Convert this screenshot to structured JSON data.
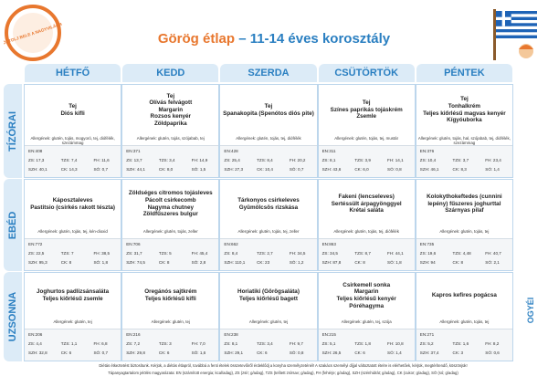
{
  "header": {
    "badge": "KÓSTOLJ BELE A NAGYVILÁGBA!",
    "title_main": "Görög étlap",
    "title_rest": "– 11-14 éves korosztály"
  },
  "days": [
    "HÉTFŐ",
    "KEDD",
    "SZERDA",
    "CSÜTÖRTÖK",
    "PÉNTEK"
  ],
  "meals": [
    {
      "name": "TÍZÓRAI",
      "cells": [
        {
          "dishes": [
            "Tej",
            "Diós kifli"
          ],
          "allergens": "Allergének: glutén, tojás, mogyoró, tej, diófélék, szezámmag",
          "nutrition": [
            "EN:408",
            "ZS: 17,3",
            "TZS: 7,4",
            "FH: 11,6",
            "SZH: 40,1",
            "CK: 14,3",
            "SÓ: 0,7"
          ]
        },
        {
          "dishes": [
            "Tej",
            "Olívás felvágott",
            "Margarin",
            "Rozsos kenyér",
            "Zöldpaprika"
          ],
          "allergens": "Allergének: glutén, tojás, szójabab, tej",
          "nutrition": [
            "EN:371",
            "ZS: 13,7",
            "TZS: 3,4",
            "FH: 14,9",
            "SZH: 44,1",
            "CK: 8,0",
            "SÓ: 1,5"
          ]
        },
        {
          "dishes": [
            "Tej",
            "Spanakopita (Spenótos diós pite)"
          ],
          "allergens": "Allergének: glutén, tojás, tej, diófélék",
          "nutrition": [
            "EN:428",
            "ZS: 25,4",
            "TZS: 8,4",
            "FH: 20,2",
            "SZH: 27,3",
            "CK: 10,4",
            "SÓ: 0,7"
          ]
        },
        {
          "dishes": [
            "Tej",
            "Színes paprikás tojáskrém",
            "Zsemle"
          ],
          "allergens": "Allergének: glutén, tojás, tej, mustár",
          "nutrition": [
            "EN:311",
            "ZS: 8,1",
            "TZS: 3,9",
            "FH: 14,1",
            "SZH: 43,6",
            "CK: 6,0",
            "SÓ: 0,8"
          ]
        },
        {
          "dishes": [
            "Tej",
            "Tonhalkrém",
            "Teljes kiőrlésű magvas kenyér",
            "Kígyóuborka"
          ],
          "allergens": "Allergének: glutén, tojás, hal, szójabab, tej, diófélék, szezámmag",
          "nutrition": [
            "EN:376",
            "ZS: 10,4",
            "TZS: 3,7",
            "FH: 23,4",
            "SZH: 46,1",
            "CK: 8,3",
            "SÓ: 1,4"
          ]
        }
      ]
    },
    {
      "name": "EBÉD",
      "cells": [
        {
          "dishes": [
            "Káposztaleves",
            "Pastitsio (csirkés rakott tészta)"
          ],
          "allergens": "Allergének: glutén, tojás, tej, kén-dioxid",
          "nutrition": [
            "EN:772",
            "ZS: 22,5",
            "TZS: 7",
            "FH: 38,5",
            "SZH: 95,3",
            "CK: 8",
            "SÓ: 1,8"
          ]
        },
        {
          "dishes": [
            "Zöldséges citromos tojásleves",
            "Pácolt csirkecomb",
            "Nagyma chutney",
            "Zöldfűszeres bulgur"
          ],
          "allergens": "Allergének: glutén, tojás, zeller",
          "nutrition": [
            "EN:706",
            "ZS: 31,7",
            "TZS: 5",
            "FH: 45,4",
            "SZH: 74,5",
            "CK: 8",
            "SÓ: 2,8"
          ]
        },
        {
          "dishes": [
            "Tárkonyos csirkeleves",
            "Gyümölcsös rizskása"
          ],
          "allergens": "Allergének: glutén, tojás, tej, zeller",
          "nutrition": [
            "EN:662",
            "ZS: 8,4",
            "TZS: 2,7",
            "FH: 34,5",
            "SZH: 110,1",
            "CK: 23",
            "SÓ: 1,2"
          ]
        },
        {
          "dishes": [
            "Fakeni (lencseleves)",
            "Sertéssült árpagyönggyel",
            "Krétai saláta"
          ],
          "allergens": "Allergének: glutén, tojás, tej, diófélék",
          "nutrition": [
            "EN:863",
            "ZS: 34,5",
            "TZS: 8,7",
            "FH: 44,1",
            "SZH: 87,8",
            "CK: 8",
            "SÓ: 1,8"
          ]
        },
        {
          "dishes": [
            "Kolokythokeftedes (cunnini",
            "lepény) fűszeres joghurttal",
            "Szárnyas pilaf"
          ],
          "allergens": "Allergének: glutén, tojás, tej",
          "nutrition": [
            "EN:735",
            "ZS: 19,6",
            "TZS: 4,48",
            "FH: 40,7",
            "SZH: 94",
            "CK: 8",
            "SÓ: 2,1"
          ]
        }
      ]
    },
    {
      "name": "UZSONNA",
      "cells": [
        {
          "dishes": [
            "Joghurtos padlizsánsaláta",
            "Teljes kiőrlésű zsemle"
          ],
          "allergens": "Allergének: glutén, tej",
          "nutrition": [
            "EN:206",
            "ZS: 4,4",
            "TZS: 1,1",
            "FH: 6,8",
            "SZH: 32,8",
            "CK: 6",
            "SÓ: 0,7"
          ]
        },
        {
          "dishes": [
            "Oregánós sajtkrém",
            "Teljes kiőrlésű kifli"
          ],
          "allergens": "Allergének: glutén, tej",
          "nutrition": [
            "EN:216",
            "ZS: 7,2",
            "TZS: 3",
            "FH: 7,0",
            "SZH: 29,8",
            "CK: 6",
            "SÓ: 1,6"
          ]
        },
        {
          "dishes": [
            "Horiatiki (Görögsaláta)",
            "Teljes kiőrlésű bagett"
          ],
          "allergens": "Allergének: glutén, tej",
          "nutrition": [
            "EN:238",
            "ZS: 8,1",
            "TZS: 3,4",
            "FH: 9,7",
            "SZH: 29,1",
            "CK: 6",
            "SÓ: 0,8"
          ]
        },
        {
          "dishes": [
            "Csirkemell sonka",
            "Margarin",
            "Teljes kiőrlésű kenyér",
            "Póréhagyma"
          ],
          "allergens": "Allergének: glutén, tej, szója",
          "nutrition": [
            "EN:215",
            "ZS: 5,1",
            "TZS: 1,8",
            "FH: 10,8",
            "SZH: 26,5",
            "CK: 6",
            "SÓ: 1,4"
          ]
        },
        {
          "dishes": [
            "Kapros kefires pogácsa"
          ],
          "allergens": "Allergének: glutén, tojás, tej",
          "nutrition": [
            "EN:271",
            "ZS: 5,2",
            "TZS: 1,6",
            "FH: 8,2",
            "SZH: 37,4",
            "CK: 3",
            "SÓ: 0,6"
          ]
        }
      ]
    }
  ],
  "footer": {
    "line1": "Diétás étkeztetést biztosítunk. Kérjük, a diétás étlapról, továbbá a fenti ételek összetevőiről érdeklődj a konyha személyzeténél! A szakács személyi díjjal változtatott ételre is elérhetőek, kérjük, megtérítendő, köszönjük!",
    "line2": "Tápanyagtartalom jelölés magyarázata: EN (számított energia; kcal/adag), ZS (zsír; g/adag), TZS (telített zsírsav; g/adag), FH (fehérje; g/adag), SZH (szénhidrát; g/adag), CK (cukor; g/adag), SÓ (só; g/adag)"
  },
  "logo": "OGYÉI"
}
